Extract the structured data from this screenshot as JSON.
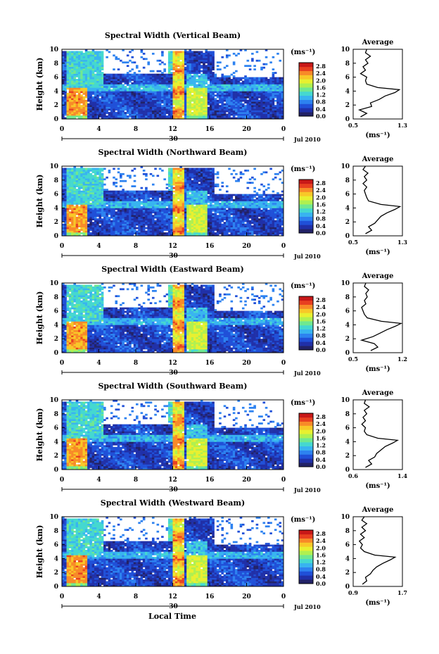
{
  "chart_data": {
    "type": "heatmap",
    "title": "",
    "date_label": "Jul 2010",
    "xlabel_bottom": "Local Time",
    "height_label": "Height (km)",
    "colorbar_unit": "(ms⁻¹)",
    "colorbar_ticks": [
      "2.8",
      "2.4",
      "2.0",
      "1.6",
      "1.2",
      "0.8",
      "0.4",
      "0.0"
    ],
    "colorbar_range": [
      0.0,
      3.0
    ],
    "colorscale": [
      "#222266",
      "#2030a8",
      "#2050d8",
      "#2d82f0",
      "#38b4f0",
      "#45d8d0",
      "#70e890",
      "#b0f050",
      "#e8f030",
      "#f8c828",
      "#f88a28",
      "#e84020",
      "#c81818"
    ],
    "x_ticks": [
      "0",
      "4",
      "8",
      "12",
      "16",
      "20",
      "0"
    ],
    "x_range_hours": [
      0,
      24
    ],
    "day_label": "30",
    "y_ticks": [
      "0",
      "2",
      "4",
      "6",
      "8",
      "10"
    ],
    "y_range_km": [
      0,
      10
    ],
    "profile_title": "Average",
    "profile_xlabel": "(ms⁻¹)",
    "panels": [
      {
        "title": "Spectral Width (Vertical Beam)",
        "profile_xticks": [
          "0.5",
          "1.3"
        ],
        "profile_xlim": [
          0.5,
          1.3
        ],
        "profile": [
          [
            0.3,
            0.62
          ],
          [
            0.8,
            0.72
          ],
          [
            1.3,
            0.6
          ],
          [
            1.8,
            0.8
          ],
          [
            2.3,
            0.78
          ],
          [
            2.8,
            0.92
          ],
          [
            3.3,
            1.02
          ],
          [
            3.8,
            1.18
          ],
          [
            4.2,
            1.25
          ],
          [
            4.5,
            0.9
          ],
          [
            5.0,
            0.72
          ],
          [
            5.5,
            0.7
          ],
          [
            6.0,
            0.72
          ],
          [
            6.5,
            0.62
          ],
          [
            7.0,
            0.7
          ],
          [
            7.5,
            0.66
          ],
          [
            8.0,
            0.74
          ],
          [
            8.5,
            0.7
          ],
          [
            9.0,
            0.78
          ],
          [
            9.5,
            0.7
          ],
          [
            10.0,
            0.72
          ]
        ]
      },
      {
        "title": "Spectral Width (Northward Beam)",
        "profile_xticks": [
          "0.5",
          "1.3"
        ],
        "profile_xlim": [
          0.5,
          1.3
        ],
        "profile": [
          [
            0.3,
            0.7
          ],
          [
            0.8,
            0.8
          ],
          [
            1.3,
            0.75
          ],
          [
            1.8,
            0.85
          ],
          [
            2.3,
            0.9
          ],
          [
            2.8,
            0.95
          ],
          [
            3.3,
            1.05
          ],
          [
            3.8,
            1.18
          ],
          [
            4.2,
            1.26
          ],
          [
            4.5,
            0.95
          ],
          [
            5.0,
            0.75
          ],
          [
            5.5,
            0.72
          ],
          [
            6.0,
            0.7
          ],
          [
            6.5,
            0.68
          ],
          [
            7.0,
            0.72
          ],
          [
            7.5,
            0.66
          ],
          [
            8.0,
            0.72
          ],
          [
            8.5,
            0.68
          ],
          [
            9.0,
            0.74
          ],
          [
            9.5,
            0.66
          ],
          [
            10.0,
            0.7
          ]
        ]
      },
      {
        "title": "Spectral Width (Eastward Beam)",
        "profile_xticks": [
          "0.5",
          "1.2"
        ],
        "profile_xlim": [
          0.5,
          1.2
        ],
        "profile": [
          [
            0.3,
            0.75
          ],
          [
            0.8,
            0.85
          ],
          [
            1.3,
            0.8
          ],
          [
            1.8,
            0.62
          ],
          [
            2.3,
            0.78
          ],
          [
            2.8,
            0.88
          ],
          [
            3.3,
            0.98
          ],
          [
            3.8,
            1.1
          ],
          [
            4.2,
            1.18
          ],
          [
            4.5,
            0.9
          ],
          [
            5.0,
            0.7
          ],
          [
            5.5,
            0.66
          ],
          [
            6.0,
            0.64
          ],
          [
            6.5,
            0.62
          ],
          [
            7.0,
            0.68
          ],
          [
            7.5,
            0.66
          ],
          [
            8.0,
            0.7
          ],
          [
            8.5,
            0.68
          ],
          [
            9.0,
            0.72
          ],
          [
            9.5,
            0.66
          ],
          [
            10.0,
            0.68
          ]
        ]
      },
      {
        "title": "Spectral Width (Southward Beam)",
        "profile_xticks": [
          "0.6",
          "1.4"
        ],
        "profile_xlim": [
          0.6,
          1.4
        ],
        "profile": [
          [
            0.3,
            0.8
          ],
          [
            0.8,
            0.9
          ],
          [
            1.3,
            0.85
          ],
          [
            1.8,
            0.95
          ],
          [
            2.3,
            0.98
          ],
          [
            2.8,
            1.05
          ],
          [
            3.3,
            1.12
          ],
          [
            3.8,
            1.24
          ],
          [
            4.2,
            1.32
          ],
          [
            4.5,
            1.0
          ],
          [
            5.0,
            0.82
          ],
          [
            5.5,
            0.78
          ],
          [
            6.0,
            0.8
          ],
          [
            6.5,
            0.74
          ],
          [
            7.0,
            0.8
          ],
          [
            7.5,
            0.76
          ],
          [
            8.0,
            0.82
          ],
          [
            8.5,
            0.78
          ],
          [
            9.0,
            0.86
          ],
          [
            9.5,
            0.78
          ],
          [
            10.0,
            0.8
          ]
        ]
      },
      {
        "title": "Spectral Width (Westward Beam)",
        "profile_xticks": [
          "0.9",
          "1.7"
        ],
        "profile_xlim": [
          0.9,
          1.7
        ],
        "profile": [
          [
            0.3,
            1.05
          ],
          [
            0.8,
            1.12
          ],
          [
            1.3,
            1.1
          ],
          [
            1.8,
            1.18
          ],
          [
            2.3,
            1.22
          ],
          [
            2.8,
            1.28
          ],
          [
            3.3,
            1.38
          ],
          [
            3.8,
            1.5
          ],
          [
            4.2,
            1.58
          ],
          [
            4.5,
            1.25
          ],
          [
            5.0,
            1.08
          ],
          [
            5.5,
            1.02
          ],
          [
            6.0,
            1.05
          ],
          [
            6.5,
            1.0
          ],
          [
            7.0,
            1.08
          ],
          [
            7.5,
            1.02
          ],
          [
            8.0,
            1.1
          ],
          [
            8.5,
            1.04
          ],
          [
            9.0,
            1.12
          ],
          [
            9.5,
            1.04
          ],
          [
            10.0,
            1.08
          ]
        ]
      }
    ]
  }
}
